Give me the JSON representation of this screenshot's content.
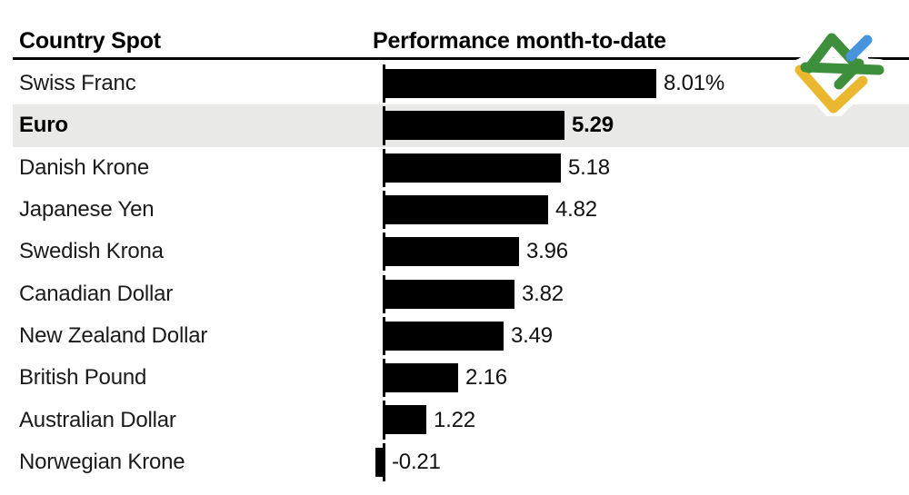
{
  "header": {
    "col1": "Country Spot",
    "col2": "Performance month-to-date"
  },
  "logo": {
    "name": "litefinance-logo",
    "colors": {
      "green": "#3E8F3C",
      "yellow": "#EAB82E",
      "blue": "#4793DC",
      "halo": "#ffffff"
    }
  },
  "chart_data": {
    "type": "bar",
    "orientation": "horizontal",
    "title": "",
    "columns": [
      "Country Spot",
      "Performance month-to-date"
    ],
    "unit": "% month-to-date",
    "bar_color": "#000000",
    "highlight_row_color": "#e9e9e7",
    "axis": {
      "baseline_value": 0,
      "grid": false
    },
    "categories": [
      "Swiss Franc",
      "Euro",
      "Danish Krone",
      "Japanese Yen",
      "Swedish Krona",
      "Canadian Dollar",
      "New Zealand Dollar",
      "British Pound",
      "Australian Dollar",
      "Norwegian Krone"
    ],
    "values": [
      8.01,
      5.29,
      5.18,
      4.82,
      3.96,
      3.82,
      3.49,
      2.16,
      1.22,
      -0.21
    ],
    "rows": [
      {
        "label": "Swiss Franc",
        "value": 8.01,
        "display": "8.01%",
        "highlighted": false
      },
      {
        "label": "Euro",
        "value": 5.29,
        "display": "5.29",
        "highlighted": true
      },
      {
        "label": "Danish Krone",
        "value": 5.18,
        "display": "5.18",
        "highlighted": false
      },
      {
        "label": "Japanese Yen",
        "value": 4.82,
        "display": "4.82",
        "highlighted": false
      },
      {
        "label": "Swedish Krona",
        "value": 3.96,
        "display": "3.96",
        "highlighted": false
      },
      {
        "label": "Canadian Dollar",
        "value": 3.82,
        "display": "3.82",
        "highlighted": false
      },
      {
        "label": "New Zealand Dollar",
        "value": 3.49,
        "display": "3.49",
        "highlighted": false
      },
      {
        "label": "British Pound",
        "value": 2.16,
        "display": "2.16",
        "highlighted": false
      },
      {
        "label": "Australian Dollar",
        "value": 1.22,
        "display": "1.22",
        "highlighted": false
      },
      {
        "label": "Norwegian Krone",
        "value": -0.21,
        "display": "-0.21",
        "highlighted": false
      }
    ]
  }
}
